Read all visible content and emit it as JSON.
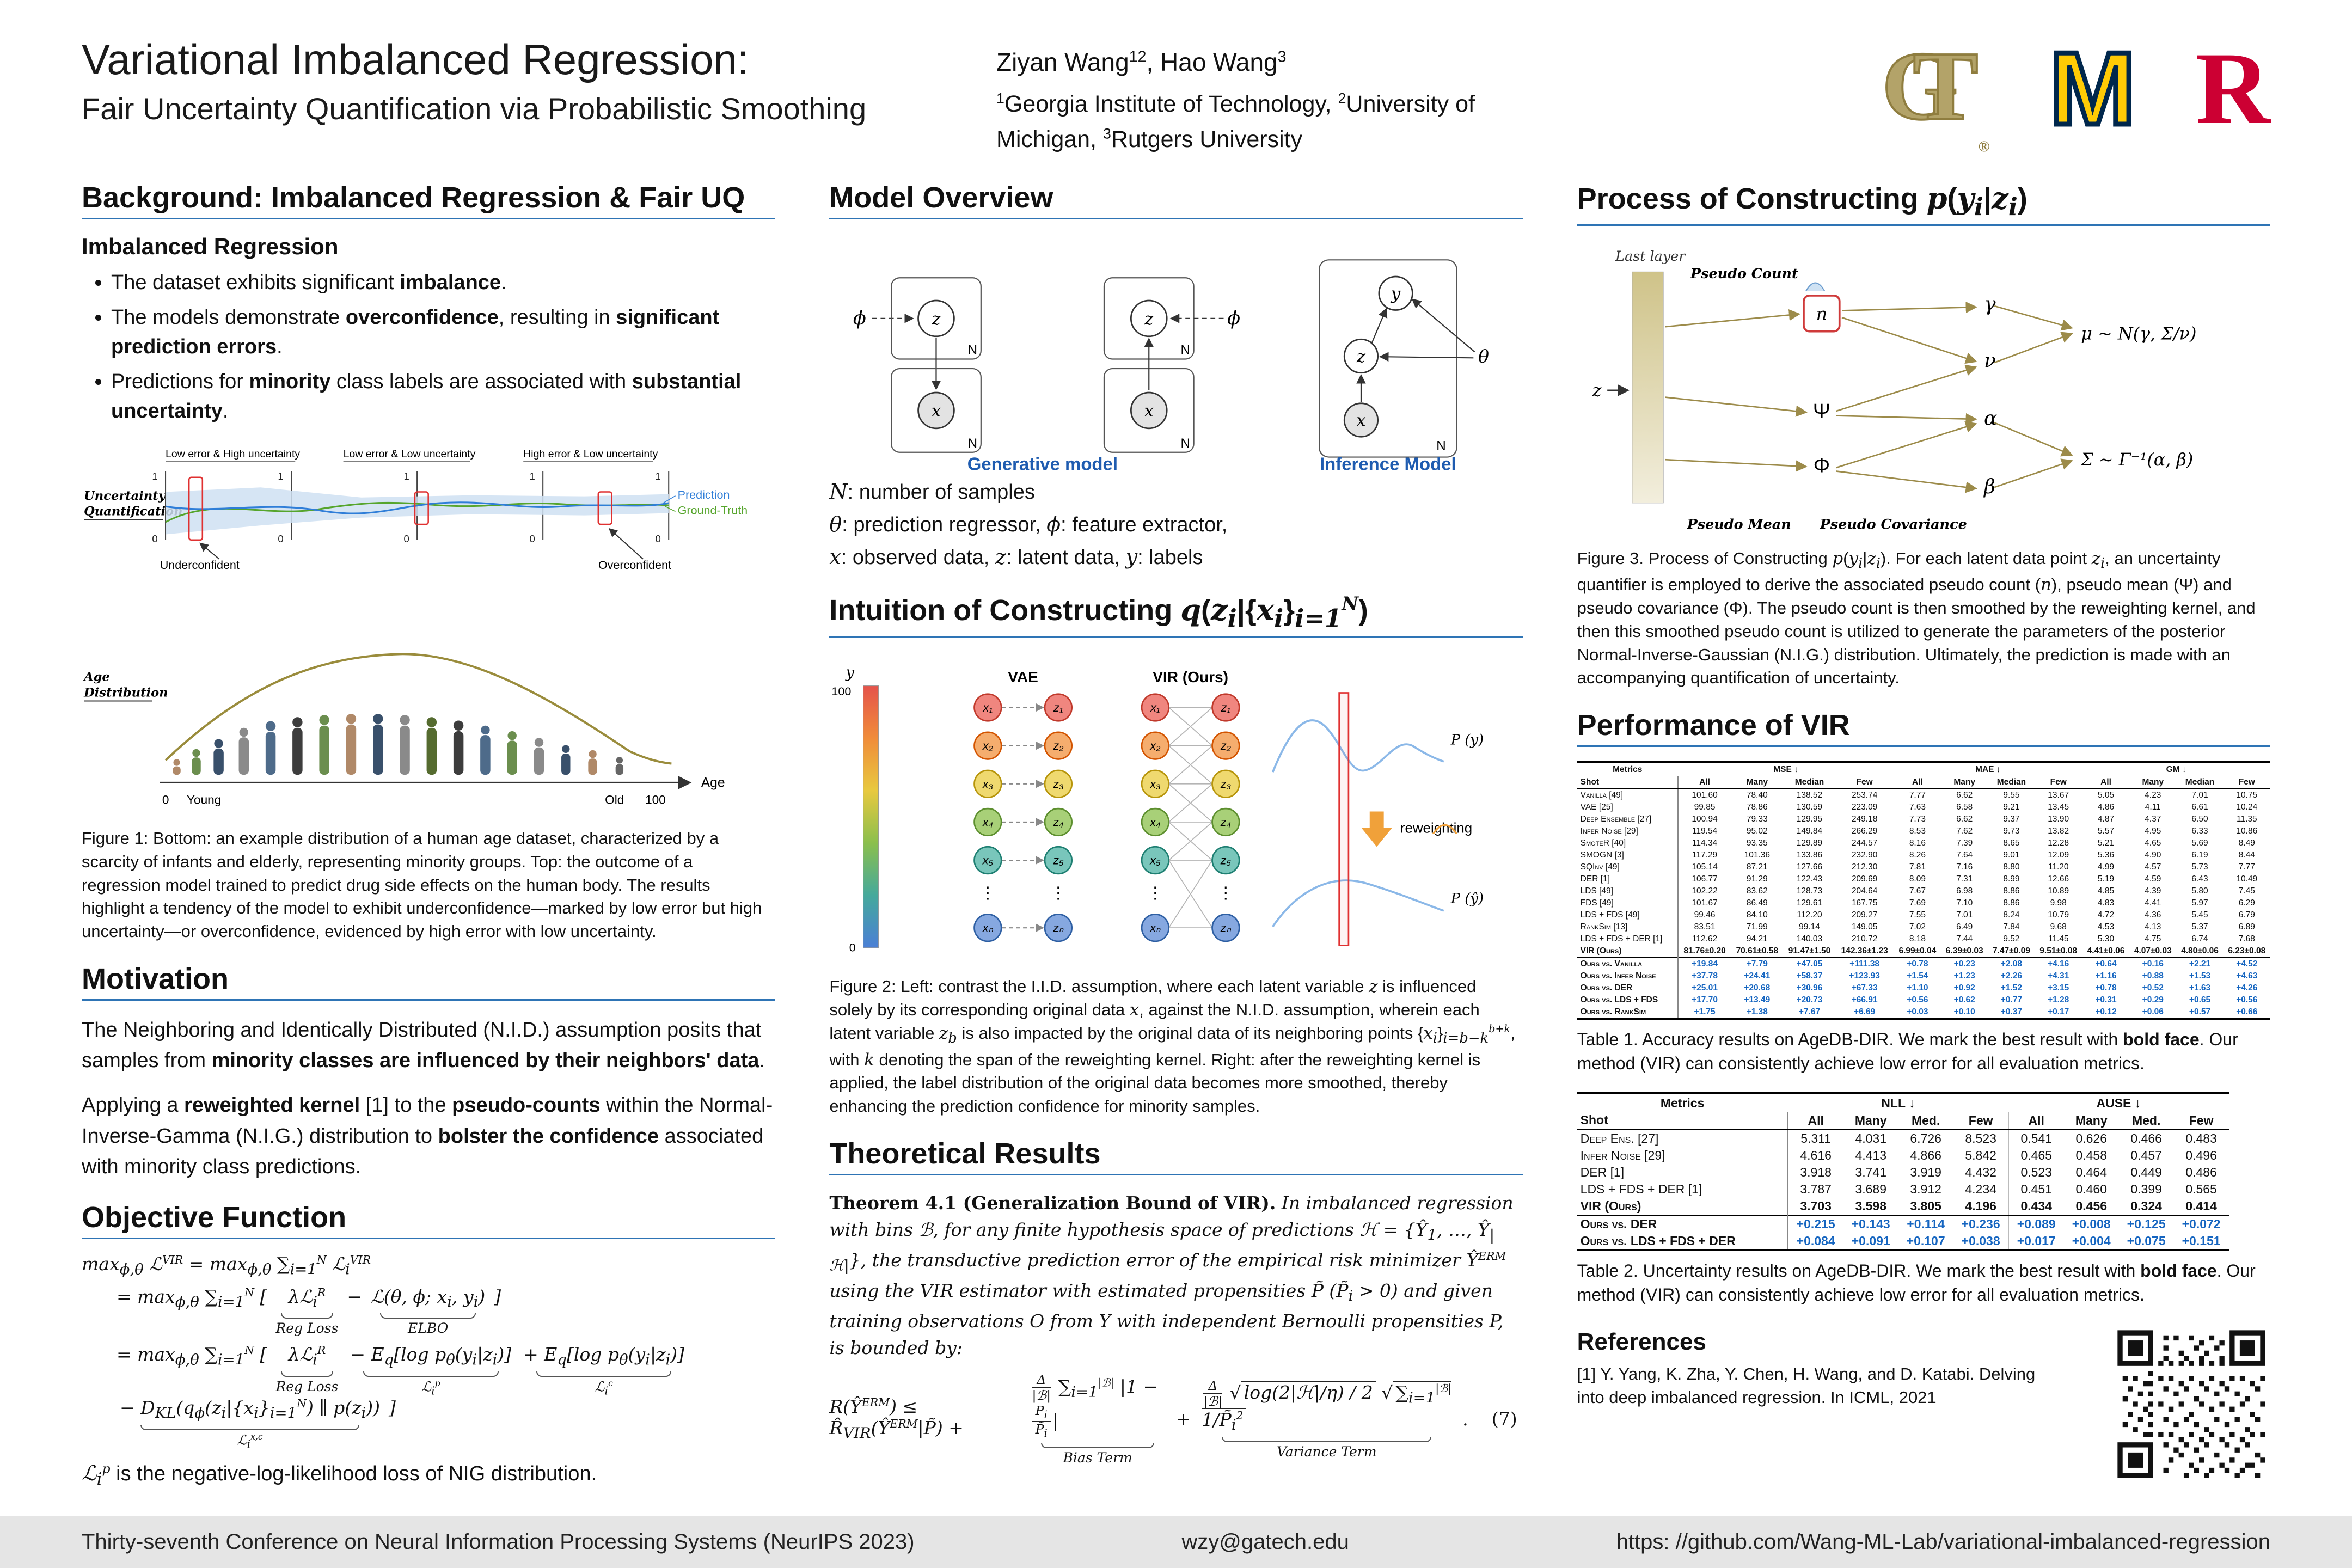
{
  "header": {
    "title1": "Variational Imbalanced Regression:",
    "title2": "Fair Uncertainty Quantification via Probabilistic Smoothing",
    "authors_html": "Ziyan Wang<sup>12</sup>, Hao Wang<sup>3</sup>",
    "affils_html": "<sup>1</sup>Georgia Institute of Technology, <sup>2</sup>University of Michigan, <sup>3</sup>Rutgers University",
    "logo_g": "G",
    "logo_t": "T",
    "reg": "®",
    "logo_m": "M",
    "logo_r": "R"
  },
  "background": {
    "title": "Background: Imbalanced Regression & Fair UQ",
    "subhead": "Imbalanced Regression",
    "bullets": [
      [
        {
          "t": "The dataset exhibits significant "
        },
        {
          "t": "imbalance",
          "b": true
        },
        {
          "t": "."
        }
      ],
      [
        {
          "t": "The models demonstrate "
        },
        {
          "t": "overconfidence",
          "b": true
        },
        {
          "t": ", resulting in "
        },
        {
          "t": "significant prediction errors",
          "b": true
        },
        {
          "t": "."
        }
      ],
      [
        {
          "t": "Predictions for "
        },
        {
          "t": "minority",
          "b": true
        },
        {
          "t": " class labels are associated with "
        },
        {
          "t": "substantial uncertainty",
          "b": true
        },
        {
          "t": "."
        }
      ]
    ]
  },
  "figure1": {
    "panel_labels": [
      "Low error & High uncertainty",
      "Low error & Low uncertainty",
      "High error & Low uncertainty"
    ],
    "uq1": "Uncertainty",
    "uq2": "Quantification",
    "legend_pred": "Prediction",
    "legend_gt": "Ground-Truth",
    "under": "Underconfident",
    "over": "Overconfident",
    "age1": "Age",
    "age2": "Distribution",
    "one": "1",
    "zero": "0",
    "xmin": "0",
    "xmax": "100",
    "young": "Young",
    "old": "Old",
    "axis": "Age",
    "caption": "Figure 1: Bottom: an example distribution of a human age dataset, characterized by a scarcity of infants and elderly, representing minority groups. Top: the outcome of a regression model trained to predict drug side effects on the human body. The results highlight a tendency of the model to exhibit underconfidence—marked by low error but high uncertainty—or overconfidence, evidenced by high error with low uncertainty."
  },
  "motivation": {
    "title": "Motivation",
    "p1": [
      {
        "t": "The Neighboring and Identically Distributed (N.I.D.) assumption posits that samples from "
      },
      {
        "t": "minority classes are influenced by their neighbors' data",
        "b": true
      },
      {
        "t": "."
      }
    ],
    "p2": [
      {
        "t": "Applying a "
      },
      {
        "t": "reweighted kernel",
        "b": true
      },
      {
        "t": " [1] to the "
      },
      {
        "t": "pseudo-counts",
        "b": true
      },
      {
        "t": " within the Normal-Inverse-Gamma (N.I.G.) distribution to "
      },
      {
        "t": "bolster the confidence",
        "b": true
      },
      {
        "t": " associated with minority class predictions."
      }
    ]
  },
  "objective": {
    "title": "Objective Function",
    "line1": "max<sub>ϕ,θ</sub> ℒ<sup>VIR</sup> = max<sub>ϕ,θ</sub> ∑<sub>i=1</sub><sup>N</sup> ℒ<sub>i</sub><sup>VIR</sup>",
    "line2_lead": "= max<sub>ϕ,θ</sub> ∑<sub>i=1</sub><sup>N</sup> [",
    "line2_t1": "λℒ<sub>i</sub><sup>R</sup>",
    "line2_l1": "Reg Loss",
    "line2_minus": "−",
    "line2_t2": "ℒ(θ, ϕ; x<sub>i</sub>, y<sub>i</sub>)",
    "line2_l2": "ELBO",
    "line2_end": "]",
    "line3_lead": "= max<sub>ϕ,θ</sub> ∑<sub>i=1</sub><sup>N</sup> [",
    "line3_t1": "λℒ<sub>i</sub><sup>R</sup>",
    "line3_l1": "Reg Loss",
    "line3_t2": "− E<sub>q</sub>[log p<sub>θ</sub>(y<sub>i</sub>|z<sub>i</sub>)]",
    "line3_l2": "ℒ<sub>i</sub><sup>p</sup>",
    "line3_t3": "+ E<sub>q</sub>[log p<sub>θ</sub>(y<sub>i</sub>|z<sub>i</sub>)]",
    "line3_l3": "ℒ<sub>i</sub><sup>c</sup>",
    "line3_t4": "− D<sub>KL</sub>(q<sub>ϕ</sub>(z<sub>i</sub>|{x<sub>i</sub>}<sub>i=1</sub><sup>N</sup>) ∥ p(z<sub>i</sub>))",
    "line3_l4": "ℒ<sub>i</sub><sup>x,c</sup>",
    "line3_end": "]",
    "closing": "<span class='m'>ℒ<sub>i</sub><sup>p</sup></span> is the negative-log-likelihood loss of NIG distribution."
  },
  "model": {
    "title": "Model Overview",
    "phi": "ϕ",
    "theta": "θ",
    "z": "z",
    "x": "x",
    "y": "y",
    "n": "N",
    "gen_label": "Generative model",
    "inf_label": "Inference Model",
    "legend": [
      "<i>N</i>: number of samples",
      "<i>θ</i>: prediction regressor, <i>ϕ</i>: feature extractor,",
      "<i>x</i>: observed data, <i>z</i>: latent data, <i>y</i>: labels"
    ]
  },
  "intuition": {
    "title_html": "Intuition of Constructing <i>q</i>(<i>z<sub>i</sub></i>|{<i>x<sub>i</sub></i>}<i><sub>i=1</sub><sup>N</sup></i>)",
    "vae": "VAE",
    "vir": "VIR (Ours)",
    "yaxis": "y",
    "ymax": "100",
    "ymin": "0",
    "x_labels": [
      "x₁",
      "x₂",
      "x₃",
      "x₄",
      "x₅",
      "xₙ"
    ],
    "z_labels": [
      "z₁",
      "z₂",
      "z₃",
      "z₄",
      "z₅",
      "zₙ"
    ],
    "dots": "⋮",
    "reweighting": "reweighting",
    "py": "P (y)",
    "pyhat": "P (ŷ)",
    "caption_html": "Figure 2: Left: contrast the I.I.D. assumption, where each latent variable <i>z</i> is influenced solely by its corresponding original data <i>x</i>, against the N.I.D. assumption, wherein each latent variable <i>z<sub>b</sub></i> is also impacted by the original data of its neighboring points {<i>x<sub>i</sub></i>}<sub><i>i=b−k</i></sub><sup><i>b+k</i></sup>, with <i>k</i> denoting the span of the reweighting kernel. Right: after the reweighting kernel is applied, the label distribution of the original data becomes more smoothed, thereby enhancing the prediction confidence for minority samples."
  },
  "theory": {
    "title": "Theoretical Results",
    "thm_head": "Theorem 4.1",
    "thm_paren": " (Generalization Bound of VIR).",
    "thm_body_html": " In imbalanced regression with bins ℬ, for any finite hypothesis space of predictions ℋ = {Ŷ<sub>1</sub>, …, Ŷ<sub>|ℋ|</sub>}, the transductive prediction error of the empirical risk minimizer Ŷ<sup>ERM</sup> using the VIR estimator with estimated propensities P̃ (P̃<sub>i</sub> > 0) and given training observations O from Y with independent Bernoulli propensities P, is bounded by:",
    "eq_left": "R(Ŷ<sup>ERM</sup>) ≤ R̂<sub>VIR</sub>(Ŷ<sup>ERM</sup>|P̃) +",
    "eq_bias": "<span class='frac'><span>Δ</span><span>|ℬ|</span></span> ∑<sub>i=1</sub><sup>|ℬ|</sup> |1 − <span class='frac'><span>P<sub>i</sub></span><span>P̃<sub>i</sub></span></span>|",
    "eq_bias_label": "Bias Term",
    "eq_plus": "+",
    "eq_var": "<span class='frac'><span>Δ</span><span>|ℬ|</span></span> <span class='rad'>√</span><span class='ol'>log(2|ℋ|/η) / 2</span> <span class='rad'>√</span><span class='ol'>∑<sub>i=1</sub><sup>|ℬ|</sup> 1/P̃<sub>i</sub><sup>2</sup></span>",
    "eq_var_label": "Variance Term",
    "eq_end": ".",
    "eq_num": "(7)"
  },
  "process": {
    "title_html": "Process of Constructing <i>p</i>(<i>y<sub>i</sub></i>|<i>z<sub>i</sub></i>)",
    "last_layer": "Last layer",
    "pseudo_count": "Pseudo Count",
    "pseudo_mean": "Pseudo Mean",
    "pseudo_cov": "Pseudo Covariance",
    "z": "z",
    "n": "n",
    "psi": "Ψ",
    "phi": "Φ",
    "gamma": "γ",
    "nu": "ν",
    "alpha": "α",
    "beta": "β",
    "mu_eq": "μ ~ N(γ, Σ/ν)",
    "sigma_eq": "Σ ~ Γ⁻¹(α, β)",
    "caption_html": "Figure 3. Process of Constructing <i>p</i>(<i>y<sub>i</sub></i>|<i>z<sub>i</sub></i>). For each latent data point <i>z<sub>i</sub></i>, an uncertainty quantifier is employed to derive the associated pseudo count (<i>n</i>), pseudo mean (Ψ) and pseudo covariance (Φ). The pseudo count is then smoothed by the reweighting kernel, and then this smoothed pseudo count is utilized to generate the parameters of the posterior Normal-Inverse-Gaussian (N.I.G.) distribution. Ultimately, the prediction is made with an accompanying quantification of uncertainty."
  },
  "performance": {
    "title": "Performance of VIR",
    "table1": {
      "groups": [
        {
          "label": "Metrics",
          "span": 1
        },
        {
          "label": "MSE ↓",
          "span": 4
        },
        {
          "label": "MAE ↓",
          "span": 4
        },
        {
          "label": "GM ↓",
          "span": 4
        }
      ],
      "columns": [
        "Shot",
        "All",
        "Many",
        "Median",
        "Few",
        "All",
        "Many",
        "Median",
        "Few",
        "All",
        "Many",
        "Median",
        "Few"
      ],
      "rows": [
        {
          "name": "Vanilla [49]",
          "cls": "",
          "vals": [
            "101.60",
            "78.40",
            "138.52",
            "253.74",
            "7.77",
            "6.62",
            "9.55",
            "13.67",
            "5.05",
            "4.23",
            "7.01",
            "10.75"
          ]
        },
        {
          "name": "VAE [25]",
          "cls": "",
          "vals": [
            "99.85",
            "78.86",
            "130.59",
            "223.09",
            "7.63",
            "6.58",
            "9.21",
            "13.45",
            "4.86",
            "4.11",
            "6.61",
            "10.24"
          ]
        },
        {
          "name": "Deep Ensemble [27]",
          "cls": "",
          "vals": [
            "100.94",
            "79.33",
            "129.95",
            "249.18",
            "7.73",
            "6.62",
            "9.37",
            "13.90",
            "4.87",
            "4.37",
            "6.50",
            "11.35"
          ]
        },
        {
          "name": "Infer Noise [29]",
          "cls": "",
          "vals": [
            "119.54",
            "95.02",
            "149.84",
            "266.29",
            "8.53",
            "7.62",
            "9.73",
            "13.82",
            "5.57",
            "4.95",
            "6.33",
            "10.86"
          ]
        },
        {
          "name": "SmoteR [40]",
          "cls": "",
          "vals": [
            "114.34",
            "93.35",
            "129.89",
            "244.57",
            "8.16",
            "7.39",
            "8.65",
            "12.28",
            "5.21",
            "4.65",
            "5.69",
            "8.49"
          ]
        },
        {
          "name": "SMOGN [3]",
          "cls": "",
          "vals": [
            "117.29",
            "101.36",
            "133.86",
            "232.90",
            "8.26",
            "7.64",
            "9.01",
            "12.09",
            "5.36",
            "4.90",
            "6.19",
            "8.44"
          ]
        },
        {
          "name": "SQInv [49]",
          "cls": "",
          "vals": [
            "105.14",
            "87.21",
            "127.66",
            "212.30",
            "7.81",
            "7.16",
            "8.80",
            "11.20",
            "4.99",
            "4.57",
            "5.73",
            "7.77"
          ]
        },
        {
          "name": "DER [1]",
          "cls": "",
          "vals": [
            "106.77",
            "91.29",
            "122.43",
            "209.69",
            "8.09",
            "7.31",
            "8.99",
            "12.66",
            "5.19",
            "4.59",
            "6.43",
            "10.49"
          ]
        },
        {
          "name": "LDS [49]",
          "cls": "",
          "vals": [
            "102.22",
            "83.62",
            "128.73",
            "204.64",
            "7.67",
            "6.98",
            "8.86",
            "10.89",
            "4.85",
            "4.39",
            "5.80",
            "7.45"
          ]
        },
        {
          "name": "FDS [49]",
          "cls": "",
          "vals": [
            "101.67",
            "86.49",
            "129.61",
            "167.75",
            "7.69",
            "7.10",
            "8.86",
            "9.98",
            "4.83",
            "4.41",
            "5.97",
            "6.29"
          ]
        },
        {
          "name": "LDS + FDS [49]",
          "cls": "",
          "vals": [
            "99.46",
            "84.10",
            "112.20",
            "209.27",
            "7.55",
            "7.01",
            "8.24",
            "10.79",
            "4.72",
            "4.36",
            "5.45",
            "6.79"
          ]
        },
        {
          "name": "RankSim [13]",
          "cls": "",
          "vals": [
            "83.51",
            "71.99",
            "99.14",
            "149.05",
            "7.02",
            "6.49",
            "7.84",
            "9.68",
            "4.53",
            "4.13",
            "5.37",
            "6.89"
          ]
        },
        {
          "name": "LDS + FDS + DER [1]",
          "cls": "",
          "vals": [
            "112.62",
            "94.21",
            "140.03",
            "210.72",
            "8.18",
            "7.44",
            "9.52",
            "11.45",
            "5.30",
            "4.75",
            "6.74",
            "7.68"
          ]
        },
        {
          "name": "VIR (Ours)",
          "cls": "ours",
          "vals": [
            "81.76±0.20",
            "70.61±0.58",
            "91.47±1.50",
            "142.36±1.23",
            "6.99±0.04",
            "6.39±0.03",
            "7.47±0.09",
            "9.51±0.08",
            "4.41±0.06",
            "4.07±0.03",
            "4.80±0.06",
            "6.23±0.08"
          ]
        },
        {
          "name": "Ours vs. Vanilla",
          "cls": "delta rule-top",
          "vals": [
            "+19.84",
            "+7.79",
            "+47.05",
            "+111.38",
            "+0.78",
            "+0.23",
            "+2.08",
            "+4.16",
            "+0.64",
            "+0.16",
            "+2.21",
            "+4.52"
          ]
        },
        {
          "name": "Ours vs. Infer Noise",
          "cls": "delta",
          "vals": [
            "+37.78",
            "+24.41",
            "+58.37",
            "+123.93",
            "+1.54",
            "+1.23",
            "+2.26",
            "+4.31",
            "+1.16",
            "+0.88",
            "+1.53",
            "+4.63"
          ]
        },
        {
          "name": "Ours vs. DER",
          "cls": "delta",
          "vals": [
            "+25.01",
            "+20.68",
            "+30.96",
            "+67.33",
            "+1.10",
            "+0.92",
            "+1.52",
            "+3.15",
            "+0.78",
            "+0.52",
            "+1.63",
            "+4.26"
          ]
        },
        {
          "name": "Ours vs. LDS + FDS",
          "cls": "delta",
          "vals": [
            "+17.70",
            "+13.49",
            "+20.73",
            "+66.91",
            "+0.56",
            "+0.62",
            "+0.77",
            "+1.28",
            "+0.31",
            "+0.29",
            "+0.65",
            "+0.56"
          ]
        },
        {
          "name": "Ours vs. RankSim",
          "cls": "delta",
          "vals": [
            "+1.75",
            "+1.38",
            "+7.67",
            "+6.69",
            "+0.03",
            "+0.10",
            "+0.37",
            "+0.17",
            "+0.12",
            "+0.06",
            "+0.57",
            "+0.66"
          ]
        }
      ]
    },
    "table1_caption": [
      {
        "t": "Table 1. Accuracy results on AgeDB-DIR. We mark the best result with "
      },
      {
        "t": "bold face",
        "b": true
      },
      {
        "t": ". Our method (VIR) can consistently achieve low error for all evaluation metrics."
      }
    ],
    "table2": {
      "groups": [
        {
          "label": "Metrics",
          "span": 1
        },
        {
          "label": "NLL ↓",
          "span": 4
        },
        {
          "label": "AUSE ↓",
          "span": 4
        }
      ],
      "columns": [
        "Shot",
        "All",
        "Many",
        "Med.",
        "Few",
        "All",
        "Many",
        "Med.",
        "Few"
      ],
      "rows": [
        {
          "name": "Deep Ens. [27]",
          "cls": "",
          "vals": [
            "5.311",
            "4.031",
            "6.726",
            "8.523",
            "0.541",
            "0.626",
            "0.466",
            "0.483"
          ]
        },
        {
          "name": "Infer Noise [29]",
          "cls": "",
          "vals": [
            "4.616",
            "4.413",
            "4.866",
            "5.842",
            "0.465",
            "0.458",
            "0.457",
            "0.496"
          ]
        },
        {
          "name": "DER [1]",
          "cls": "",
          "vals": [
            "3.918",
            "3.741",
            "3.919",
            "4.432",
            "0.523",
            "0.464",
            "0.449",
            "0.486"
          ]
        },
        {
          "name": "LDS + FDS + DER [1]",
          "cls": "",
          "vals": [
            "3.787",
            "3.689",
            "3.912",
            "4.234",
            "0.451",
            "0.460",
            "0.399",
            "0.565"
          ]
        },
        {
          "name": "VIR (Ours)",
          "cls": "ours",
          "vals": [
            "3.703",
            "3.598",
            "3.805",
            "4.196",
            "0.434",
            "0.456",
            "0.324",
            "0.414"
          ]
        },
        {
          "name": "Ours vs. DER",
          "cls": "delta rule-top",
          "vals": [
            "+0.215",
            "+0.143",
            "+0.114",
            "+0.236",
            "+0.089",
            "+0.008",
            "+0.125",
            "+0.072"
          ]
        },
        {
          "name": "Ours vs. LDS + FDS + DER",
          "cls": "delta",
          "vals": [
            "+0.084",
            "+0.091",
            "+0.107",
            "+0.038",
            "+0.017",
            "+0.004",
            "+0.075",
            "+0.151"
          ]
        }
      ]
    },
    "table2_caption": [
      {
        "t": "Table 2. Uncertainty results on AgeDB-DIR. We mark the best result with "
      },
      {
        "t": "bold face",
        "b": true
      },
      {
        "t": ". Our method (VIR) can consistently achieve low error for all evaluation metrics."
      }
    ]
  },
  "references": {
    "title": "References",
    "items": [
      "[1] Y. Yang, K. Zha, Y. Chen, H. Wang, and D. Katabi. Delving into deep imbalanced regression. In ICML, 2021"
    ]
  },
  "footer": {
    "left": "Thirty-seventh Conference on Neural Information Processing Systems (NeurIPS 2023)",
    "center": "wzy@gatech.edu",
    "right": "https: //github.com/Wang-ML-Lab/variational-imbalanced-regression"
  }
}
